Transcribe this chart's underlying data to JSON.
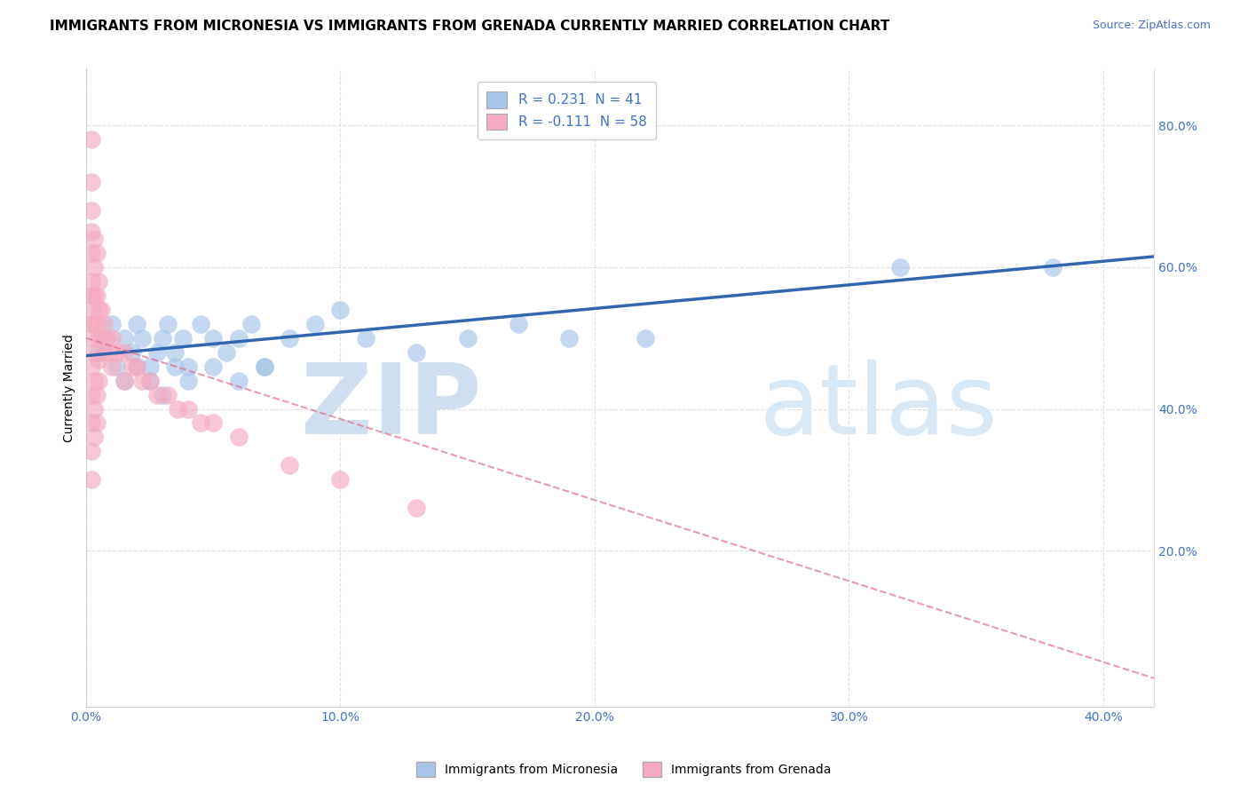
{
  "title": "IMMIGRANTS FROM MICRONESIA VS IMMIGRANTS FROM GRENADA CURRENTLY MARRIED CORRELATION CHART",
  "source_text": "Source: ZipAtlas.com",
  "ylabel": "Currently Married",
  "xlabel_blue": "Immigrants from Micronesia",
  "xlabel_pink": "Immigrants from Grenada",
  "legend_blue_label": "R = 0.231  N = 41",
  "legend_pink_label": "R = -0.111  N = 58",
  "xlim": [
    0.0,
    0.42
  ],
  "ylim": [
    -0.02,
    0.88
  ],
  "ytick_vals": [
    0.2,
    0.4,
    0.6,
    0.8
  ],
  "ytick_labels": [
    "20.0%",
    "40.0%",
    "60.0%",
    "80.0%"
  ],
  "xtick_vals": [
    0.0,
    0.1,
    0.2,
    0.3,
    0.4
  ],
  "xtick_labels": [
    "0.0%",
    "10.0%",
    "20.0%",
    "30.0%",
    "40.0%"
  ],
  "blue_scatter_color": "#a8c4e8",
  "pink_scatter_color": "#f4aac0",
  "blue_line_color": "#3465b0",
  "pink_line_color": "#e07090",
  "blue_line_x": [
    0.0,
    0.42
  ],
  "blue_line_y": [
    0.475,
    0.615
  ],
  "pink_line_x": [
    0.0,
    0.42
  ],
  "pink_line_y": [
    0.5,
    0.02
  ],
  "blue_scatter_x": [
    0.005,
    0.008,
    0.01,
    0.012,
    0.015,
    0.018,
    0.02,
    0.022,
    0.025,
    0.028,
    0.03,
    0.032,
    0.035,
    0.038,
    0.04,
    0.045,
    0.05,
    0.055,
    0.06,
    0.065,
    0.07,
    0.08,
    0.09,
    0.1,
    0.11,
    0.13,
    0.15,
    0.17,
    0.19,
    0.22,
    0.015,
    0.02,
    0.025,
    0.03,
    0.035,
    0.04,
    0.05,
    0.06,
    0.07,
    0.32,
    0.38
  ],
  "blue_scatter_y": [
    0.48,
    0.5,
    0.52,
    0.46,
    0.5,
    0.48,
    0.52,
    0.5,
    0.46,
    0.48,
    0.5,
    0.52,
    0.48,
    0.5,
    0.46,
    0.52,
    0.5,
    0.48,
    0.5,
    0.52,
    0.46,
    0.5,
    0.52,
    0.54,
    0.5,
    0.48,
    0.5,
    0.52,
    0.5,
    0.5,
    0.44,
    0.46,
    0.44,
    0.42,
    0.46,
    0.44,
    0.46,
    0.44,
    0.46,
    0.6,
    0.6
  ],
  "pink_scatter_x": [
    0.002,
    0.002,
    0.002,
    0.002,
    0.002,
    0.002,
    0.002,
    0.002,
    0.002,
    0.002,
    0.003,
    0.003,
    0.003,
    0.003,
    0.003,
    0.004,
    0.004,
    0.004,
    0.005,
    0.005,
    0.005,
    0.005,
    0.005,
    0.006,
    0.006,
    0.007,
    0.007,
    0.008,
    0.009,
    0.01,
    0.01,
    0.012,
    0.015,
    0.015,
    0.018,
    0.02,
    0.022,
    0.025,
    0.028,
    0.032,
    0.036,
    0.04,
    0.045,
    0.05,
    0.06,
    0.08,
    0.1,
    0.13,
    0.002,
    0.002,
    0.002,
    0.002,
    0.002,
    0.003,
    0.003,
    0.003,
    0.004,
    0.004
  ],
  "pink_scatter_y": [
    0.78,
    0.72,
    0.68,
    0.65,
    0.62,
    0.58,
    0.56,
    0.54,
    0.52,
    0.5,
    0.64,
    0.6,
    0.56,
    0.52,
    0.48,
    0.62,
    0.56,
    0.52,
    0.58,
    0.54,
    0.5,
    0.47,
    0.44,
    0.54,
    0.5,
    0.52,
    0.48,
    0.5,
    0.48,
    0.5,
    0.46,
    0.48,
    0.48,
    0.44,
    0.46,
    0.46,
    0.44,
    0.44,
    0.42,
    0.42,
    0.4,
    0.4,
    0.38,
    0.38,
    0.36,
    0.32,
    0.3,
    0.26,
    0.46,
    0.42,
    0.38,
    0.34,
    0.3,
    0.44,
    0.4,
    0.36,
    0.42,
    0.38
  ],
  "watermark_zip_color": "#d0dff0",
  "watermark_atlas_color": "#d8e8f4",
  "background_color": "#ffffff",
  "grid_color": "#dddddd",
  "title_fontsize": 11,
  "source_fontsize": 9,
  "axis_label_fontsize": 10,
  "tick_fontsize": 10,
  "legend_fontsize": 11,
  "tick_color": "#4472c4"
}
